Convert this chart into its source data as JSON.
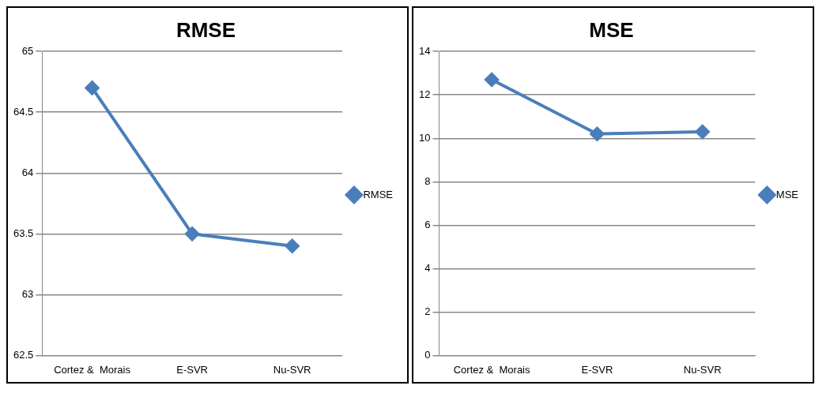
{
  "chart_data": [
    {
      "type": "line",
      "title": "RMSE",
      "categories": [
        "Cortez &  Morais",
        "E-SVR",
        "Nu-SVR"
      ],
      "series": [
        {
          "name": "RMSE",
          "color": "#4a7ebb",
          "values": [
            64.7,
            63.5,
            63.4
          ]
        }
      ],
      "ylim": [
        62.5,
        65
      ],
      "yticks": [
        62.5,
        63,
        63.5,
        64,
        64.5,
        65
      ],
      "grid": "y",
      "legend": "right",
      "marker": "diamond",
      "line_style": "solid"
    },
    {
      "type": "line",
      "title": "MSE",
      "categories": [
        "Cortez &  Morais",
        "E-SVR",
        "Nu-SVR"
      ],
      "series": [
        {
          "name": "MSE",
          "color": "#4a7ebb",
          "values": [
            12.7,
            10.2,
            10.3
          ]
        }
      ],
      "ylim": [
        0,
        14
      ],
      "yticks": [
        0,
        2,
        4,
        6,
        8,
        10,
        12,
        14
      ],
      "grid": "y",
      "legend": "right",
      "marker": "diamond",
      "line_style": "solid"
    }
  ]
}
